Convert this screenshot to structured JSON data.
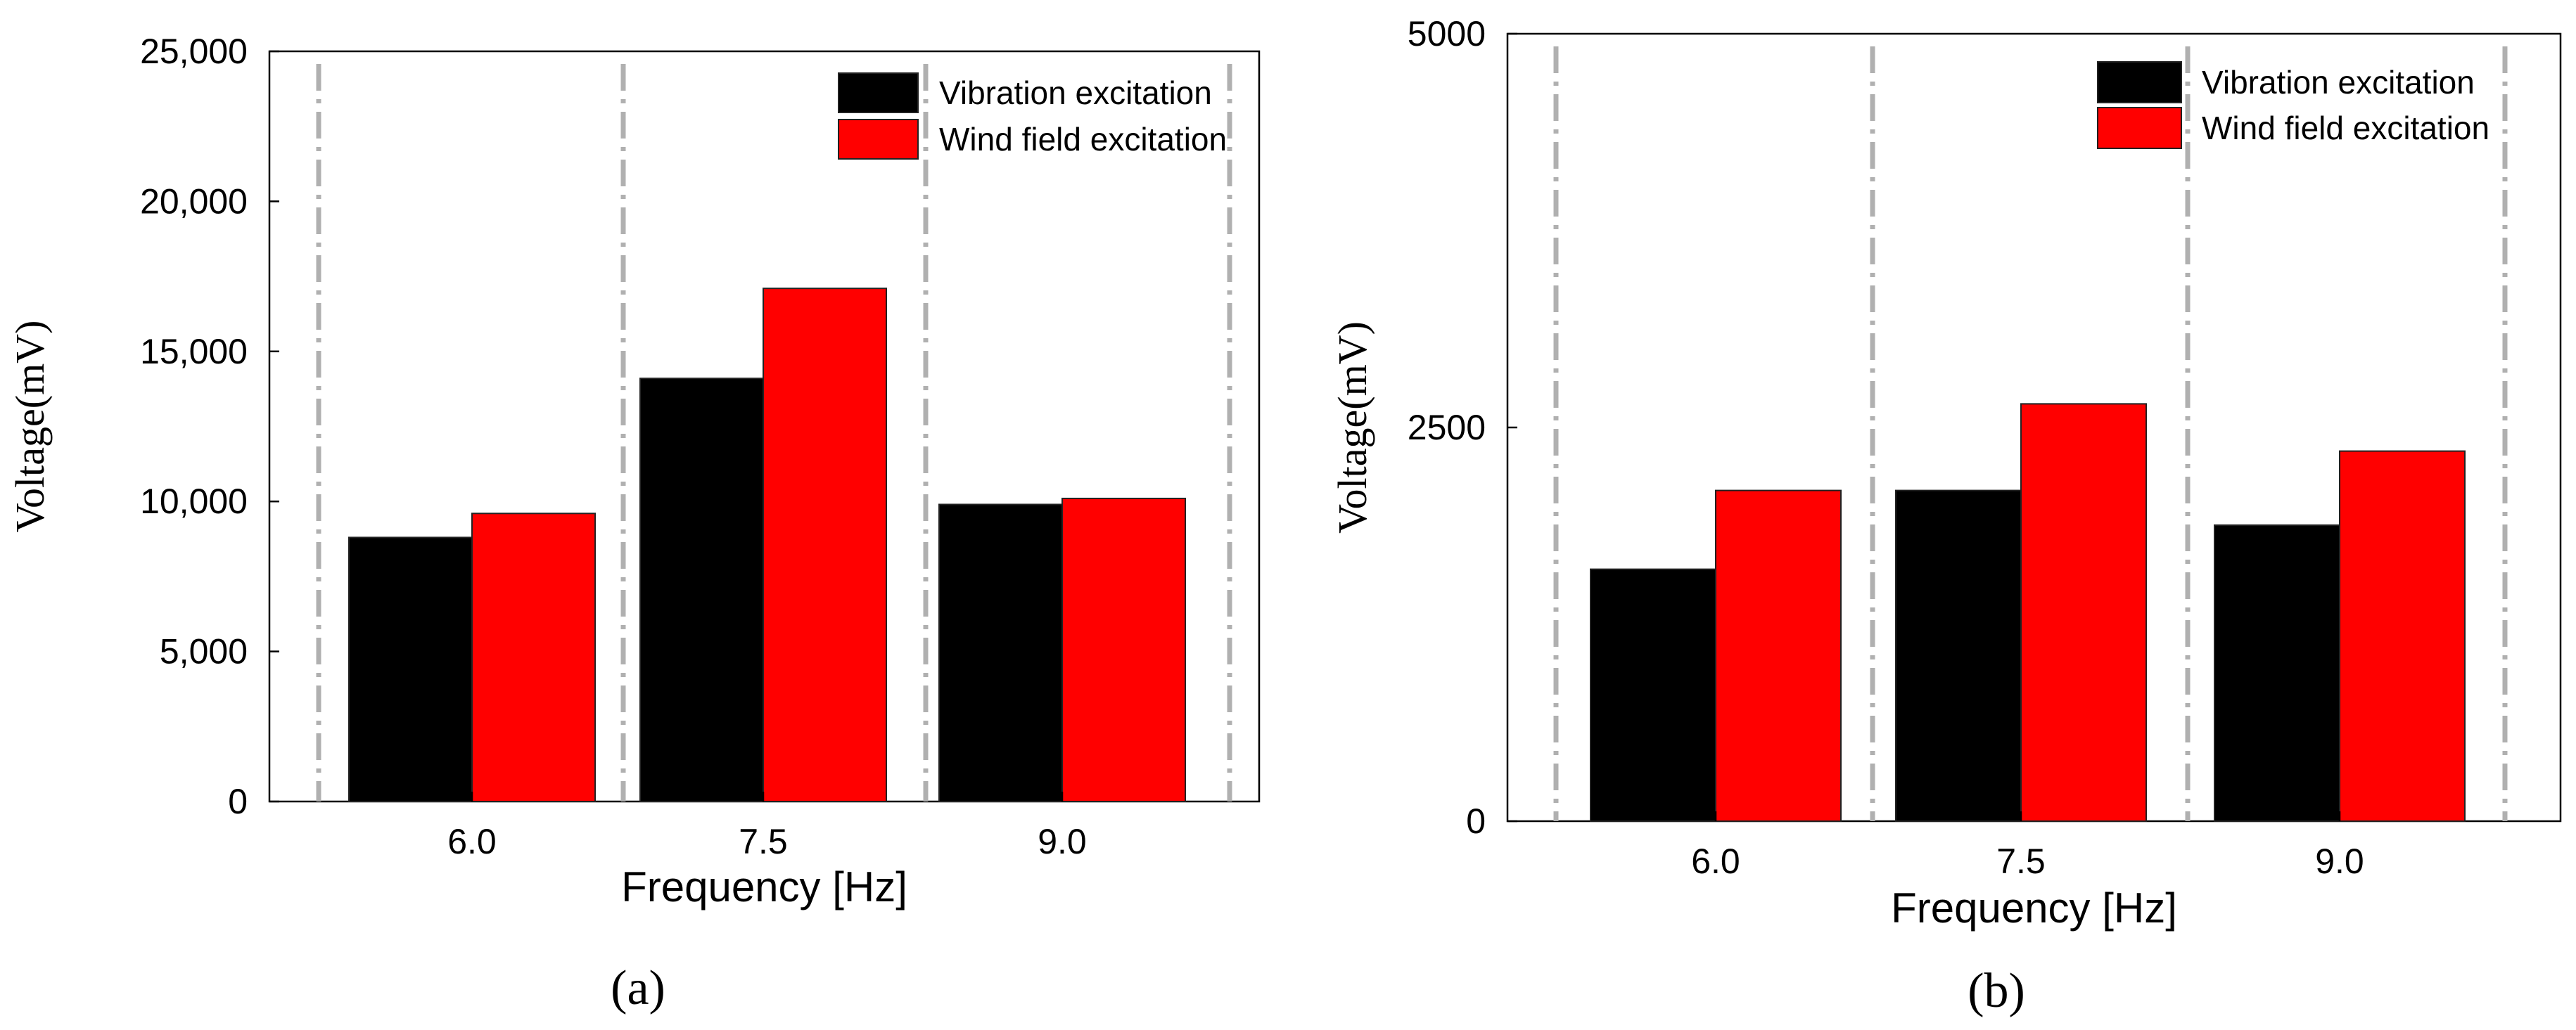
{
  "chart_data": [
    {
      "type": "bar",
      "panel_label": "(a)",
      "title": "",
      "xlabel": "Frequency [Hz]",
      "ylabel": "Voltage(mV)",
      "categories": [
        "6.0",
        "7.5",
        "9.0"
      ],
      "ylim": [
        0,
        25000
      ],
      "yticks": [
        0,
        5000,
        10000,
        15000,
        20000,
        25000
      ],
      "ytick_labels": [
        "0",
        "5,000",
        "10,000",
        "15,000",
        "20,000",
        "25,000"
      ],
      "grid": "dash-dot vertical separators",
      "legend_position": "top-right",
      "series": [
        {
          "name": "Vibration excitation",
          "color": "#000000",
          "values": [
            8800,
            14100,
            9900
          ]
        },
        {
          "name": "Wind field excitation",
          "color": "#ff0000",
          "values": [
            9600,
            17100,
            10100
          ]
        }
      ]
    },
    {
      "type": "bar",
      "panel_label": "(b)",
      "title": "",
      "xlabel": "Frequency [Hz]",
      "ylabel": "Voltage(mV)",
      "categories": [
        "6.0",
        "7.5",
        "9.0"
      ],
      "ylim": [
        0,
        5000
      ],
      "yticks": [
        0,
        2500,
        5000
      ],
      "ytick_labels": [
        "0",
        "2500",
        "5000"
      ],
      "grid": "dash-dot vertical separators",
      "legend_position": "top-right",
      "series": [
        {
          "name": "Vibration excitation",
          "color": "#000000",
          "values": [
            1600,
            2100,
            1880
          ]
        },
        {
          "name": "Wind field excitation",
          "color": "#ff0000",
          "values": [
            2100,
            2650,
            2350
          ]
        }
      ]
    }
  ],
  "style": {
    "separator_color": "#b0b0b0",
    "bar_edge_color": "#222222",
    "axis_color": "#000000"
  }
}
